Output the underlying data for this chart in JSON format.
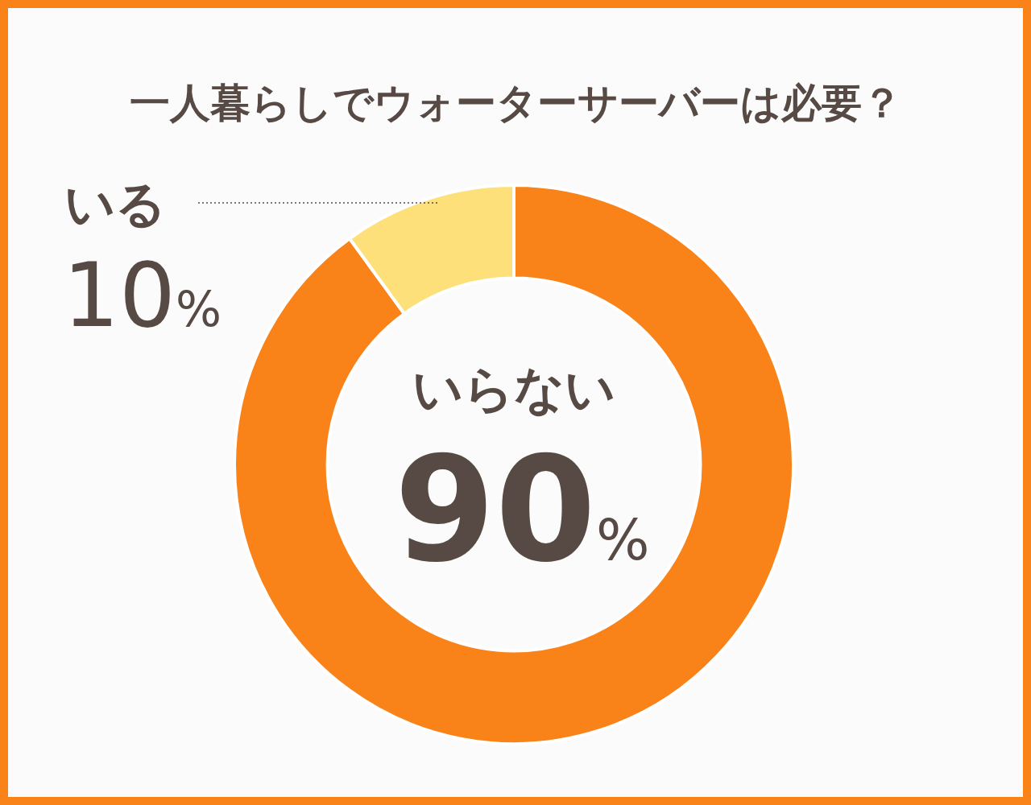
{
  "chart_data": {
    "type": "donut",
    "title": "一人暮らしでウォーターサーバーは必要？",
    "categories": [
      "いらない",
      "いる"
    ],
    "values": [
      90,
      10
    ],
    "colors": [
      "#f98219",
      "#fde07a"
    ],
    "value_labels": [
      "90%",
      "10%"
    ]
  }
}
